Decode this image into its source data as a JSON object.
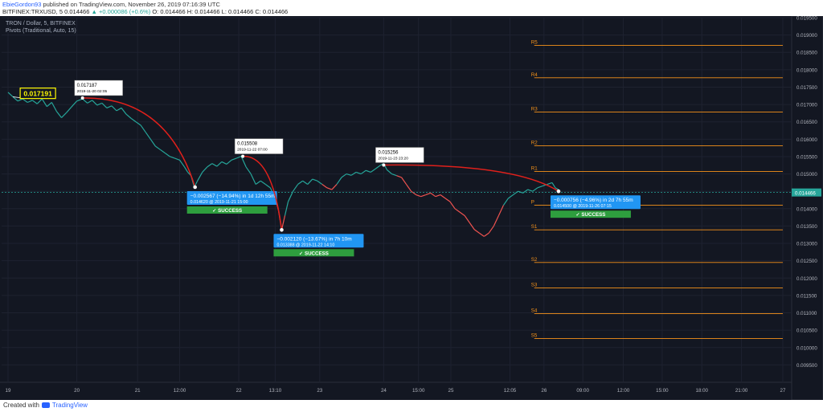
{
  "header": {
    "user": "EbieGordon93",
    "published": "published on TradingView.com, November 26, 2019 07:16:39 UTC",
    "symbol": "BITFINEX:TRXUSD, 5",
    "last": "0.014466",
    "change": "▲ +0.000086 (+0.6%)",
    "ohlc": "O: 0.014466 H: 0.014466 L: 0.014466 C: 0.014466"
  },
  "chart_title": "TRON / Dollar, 5, BITFINEX",
  "chart_subtitle": "Pivots (Traditional, Auto, 15)",
  "footer": {
    "created": "Created with",
    "brand": "TradingView"
  },
  "colors": {
    "background": "#131722",
    "up": "#26a69a",
    "down": "#ef5350",
    "pivot": "#f7931a",
    "arrow": "#e0201b",
    "callout": "#2196f3",
    "success": "#2e9e3e",
    "last_price_bg": "#26a69a",
    "current_box": "#fffb00"
  },
  "chart_data": {
    "type": "line",
    "ylim": [
      0.009,
      0.0195
    ],
    "y_ticks": [
      "0.019500",
      "0.019000",
      "0.018500",
      "0.018000",
      "0.017500",
      "0.017000",
      "0.016500",
      "0.016000",
      "0.015500",
      "0.015000",
      "0.014500",
      "0.014000",
      "0.013500",
      "0.013000",
      "0.012500",
      "0.012000",
      "0.011500",
      "0.011000",
      "0.010500",
      "0.010000",
      "0.009500"
    ],
    "x_ticks": [
      "19",
      "20",
      "21",
      "12:00",
      "22",
      "13:10",
      "23",
      "24",
      "15:00",
      "25",
      "12:05",
      "26",
      "09:00",
      "12:00",
      "15:00",
      "18:00",
      "21:00",
      "27"
    ],
    "x_tick_idx": [
      0,
      85,
      160,
      212,
      285,
      330,
      385,
      464,
      507,
      547,
      620,
      662,
      710,
      760,
      808,
      857,
      906,
      957
    ],
    "last_price": "0.014466",
    "current_label": "0.017191",
    "price_series": [
      [
        0,
        0.01735
      ],
      [
        6,
        0.01722
      ],
      [
        12,
        0.0171
      ],
      [
        18,
        0.01716
      ],
      [
        24,
        0.01706
      ],
      [
        30,
        0.01712
      ],
      [
        36,
        0.01702
      ],
      [
        42,
        0.01716
      ],
      [
        48,
        0.01694
      ],
      [
        54,
        0.01706
      ],
      [
        60,
        0.0168
      ],
      [
        66,
        0.01662
      ],
      [
        72,
        0.01676
      ],
      [
        78,
        0.01692
      ],
      [
        85,
        0.0171
      ],
      [
        92,
        0.01716
      ],
      [
        98,
        0.01704
      ],
      [
        104,
        0.01712
      ],
      [
        110,
        0.01698
      ],
      [
        116,
        0.01704
      ],
      [
        122,
        0.0169
      ],
      [
        128,
        0.01696
      ],
      [
        134,
        0.01682
      ],
      [
        140,
        0.0169
      ],
      [
        146,
        0.01672
      ],
      [
        152,
        0.0166
      ],
      [
        158,
        0.0165
      ],
      [
        164,
        0.0164
      ],
      [
        170,
        0.0162
      ],
      [
        176,
        0.016
      ],
      [
        182,
        0.0158
      ],
      [
        188,
        0.0157
      ],
      [
        194,
        0.0156
      ],
      [
        200,
        0.0155
      ],
      [
        206,
        0.01545
      ],
      [
        212,
        0.0154
      ],
      [
        218,
        0.0152
      ],
      [
        222,
        0.01505
      ],
      [
        226,
        0.01495
      ],
      [
        230,
        0.01462
      ],
      [
        234,
        0.0148
      ],
      [
        240,
        0.01505
      ],
      [
        246,
        0.0152
      ],
      [
        252,
        0.0153
      ],
      [
        258,
        0.01522
      ],
      [
        264,
        0.01535
      ],
      [
        270,
        0.01528
      ],
      [
        276,
        0.0154
      ],
      [
        282,
        0.01545
      ],
      [
        288,
        0.01551
      ],
      [
        294,
        0.0152
      ],
      [
        300,
        0.015
      ],
      [
        306,
        0.0147
      ],
      [
        312,
        0.0148
      ],
      [
        318,
        0.0147
      ],
      [
        324,
        0.0146
      ],
      [
        330,
        0.0143
      ],
      [
        334,
        0.01395
      ],
      [
        338,
        0.01339
      ],
      [
        342,
        0.0138
      ],
      [
        346,
        0.0142
      ],
      [
        352,
        0.0145
      ],
      [
        358,
        0.0147
      ],
      [
        364,
        0.0148
      ],
      [
        370,
        0.0147
      ],
      [
        376,
        0.01485
      ],
      [
        382,
        0.0148
      ],
      [
        388,
        0.0147
      ],
      [
        394,
        0.0146
      ],
      [
        400,
        0.01455
      ],
      [
        406,
        0.0147
      ],
      [
        412,
        0.0149
      ],
      [
        418,
        0.015
      ],
      [
        424,
        0.01496
      ],
      [
        430,
        0.01505
      ],
      [
        436,
        0.015
      ],
      [
        442,
        0.0151
      ],
      [
        448,
        0.01505
      ],
      [
        454,
        0.01515
      ],
      [
        460,
        0.01525
      ],
      [
        464,
        0.0153
      ],
      [
        468,
        0.01512
      ],
      [
        474,
        0.015
      ],
      [
        480,
        0.01495
      ],
      [
        486,
        0.0149
      ],
      [
        492,
        0.0147
      ],
      [
        498,
        0.0145
      ],
      [
        504,
        0.0144
      ],
      [
        510,
        0.01435
      ],
      [
        516,
        0.0144
      ],
      [
        522,
        0.01445
      ],
      [
        528,
        0.01435
      ],
      [
        534,
        0.0144
      ],
      [
        540,
        0.0143
      ],
      [
        546,
        0.0142
      ],
      [
        552,
        0.014
      ],
      [
        558,
        0.0139
      ],
      [
        564,
        0.0138
      ],
      [
        570,
        0.0136
      ],
      [
        576,
        0.0134
      ],
      [
        582,
        0.0133
      ],
      [
        588,
        0.0132
      ],
      [
        594,
        0.0133
      ],
      [
        600,
        0.0135
      ],
      [
        606,
        0.0138
      ],
      [
        612,
        0.0141
      ],
      [
        618,
        0.0143
      ],
      [
        624,
        0.0144
      ],
      [
        630,
        0.0145
      ],
      [
        636,
        0.01445
      ],
      [
        642,
        0.01455
      ],
      [
        648,
        0.0145
      ],
      [
        654,
        0.0146
      ],
      [
        660,
        0.01465
      ],
      [
        666,
        0.0147
      ],
      [
        672,
        0.01475
      ],
      [
        676,
        0.0146
      ],
      [
        680,
        0.01455
      ]
    ],
    "pivots": [
      {
        "label": "R5",
        "value": 0.0187
      },
      {
        "label": "R4",
        "value": 0.01777
      },
      {
        "label": "R3",
        "value": 0.01678
      },
      {
        "label": "R2",
        "value": 0.01581
      },
      {
        "label": "R1",
        "value": 0.01507
      },
      {
        "label": "P",
        "value": 0.0141
      },
      {
        "label": "S1",
        "value": 0.01339
      },
      {
        "label": "S2",
        "value": 0.01245
      },
      {
        "label": "S3",
        "value": 0.01172
      },
      {
        "label": "S4",
        "value": 0.01098
      },
      {
        "label": "S5",
        "value": 0.01026
      }
    ],
    "pivot_x_range": [
      650,
      957
    ],
    "annotations": [
      {
        "from": [
          92,
          0.017187
        ],
        "to": [
          231,
          0.01462
        ],
        "top_label": "0.017187",
        "top_sub": "2019-11-20 02:05",
        "box_l1": "−0.002567 (−14.94%) in 1d 12h 55m",
        "box_l2": "0.014620 @ 2019-11-21  15:00",
        "success": "✓ SUCCESS"
      },
      {
        "from": [
          290,
          0.015508
        ],
        "to": [
          338,
          0.013388
        ],
        "top_label": "0.015508",
        "top_sub": "2019-11-22 07:00",
        "box_l1": "−0.002120 (−13.67%) in 7h 10m",
        "box_l2": "0.013388 @ 2019-11-22  14:10",
        "success": "✓ SUCCESS"
      },
      {
        "from": [
          464,
          0.015256
        ],
        "to": [
          680,
          0.0145
        ],
        "top_label": "0.015256",
        "top_sub": "2019-11-23 23:20",
        "box_l1": "−0.000756 (−4.96%) in 2d 7h 55m",
        "box_l2": "0.014500 @ 2019-11-26  07:15",
        "success": "✓ SUCCESS"
      }
    ]
  }
}
